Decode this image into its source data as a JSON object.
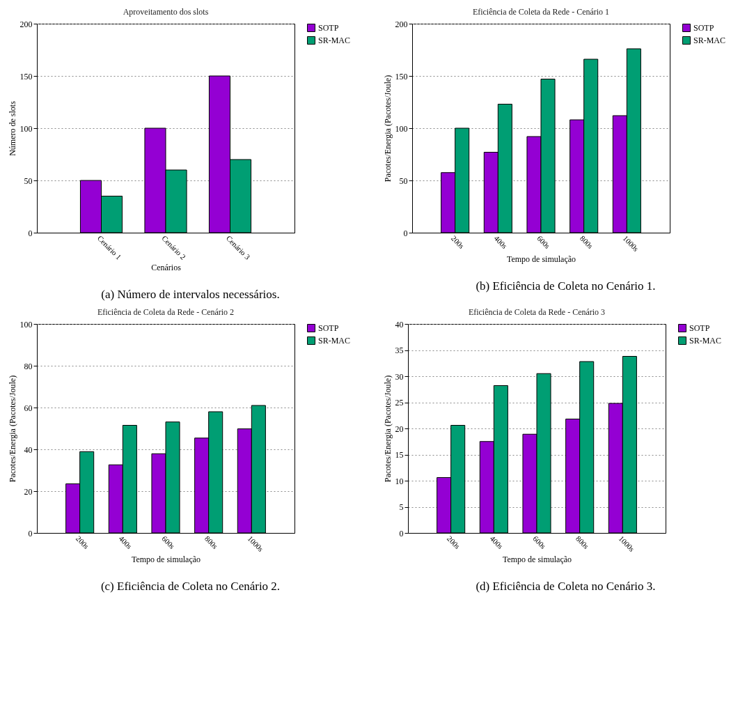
{
  "chart_data": [
    {
      "type": "bar",
      "title": "Aproveitamento dos slots",
      "xlabel": "Cenários",
      "ylabel": "Número de slots",
      "categories": [
        "Cenário 1",
        "Cenário 2",
        "Cenário 3"
      ],
      "series": [
        {
          "name": "SOTP",
          "color": "#9400d3",
          "values": [
            50,
            100,
            150
          ]
        },
        {
          "name": "SR-MAC",
          "color": "#009e73",
          "values": [
            35,
            60,
            70
          ]
        }
      ],
      "ylim": [
        0,
        200
      ],
      "yticks": [
        0,
        50,
        100,
        150,
        200
      ],
      "grid": "y",
      "legend": "top right",
      "annotations": [
        "(a) Número de intervalos necessários."
      ]
    },
    {
      "type": "bar",
      "title": "Eficiência de Coleta da Rede - Cenário 1",
      "xlabel": "Tempo de simulação",
      "ylabel": "Pacotes/Energia (Pacotes/Joule)",
      "categories": [
        "200s",
        "400s",
        "600s",
        "800s",
        "1000s"
      ],
      "series": [
        {
          "name": "SOTP",
          "color": "#9400d3",
          "values": [
            57.5,
            77,
            92,
            108,
            112
          ]
        },
        {
          "name": "SR-MAC",
          "color": "#009e73",
          "values": [
            100,
            123,
            147,
            166,
            176
          ]
        }
      ],
      "ylim": [
        0,
        200
      ],
      "yticks": [
        0,
        50,
        100,
        150,
        200
      ],
      "grid": "y",
      "legend": "top right",
      "annotations": [
        "(b) Eficiência de Coleta no Cenário 1."
      ]
    },
    {
      "type": "bar",
      "title": "Eficiência de Coleta da Rede - Cenário 2",
      "xlabel": "Tempo de simulação",
      "ylabel": "Pacotes/Energia (Pacotes/Joule)",
      "categories": [
        "200s",
        "400s",
        "600s",
        "800s",
        "1000s"
      ],
      "series": [
        {
          "name": "SOTP",
          "color": "#9400d3",
          "values": [
            23.5,
            32.6,
            37.9,
            45.4,
            49.8
          ]
        },
        {
          "name": "SR-MAC",
          "color": "#009e73",
          "values": [
            38.9,
            51.5,
            53.1,
            58,
            61
          ]
        }
      ],
      "ylim": [
        0,
        100
      ],
      "yticks": [
        0,
        20,
        40,
        60,
        80,
        100
      ],
      "grid": "y",
      "legend": "top right",
      "annotations": [
        "(c) Eficiência de Coleta no Cenário 2."
      ]
    },
    {
      "type": "bar",
      "title": "Eficiência de Coleta da Rede - Cenário 3",
      "xlabel": "Tempo de simulação",
      "ylabel": "Pacotes/Energia (Pacotes/Joule)",
      "categories": [
        "200s",
        "400s",
        "600s",
        "800s",
        "1000s"
      ],
      "series": [
        {
          "name": "SOTP",
          "color": "#9400d3",
          "values": [
            10.6,
            17.5,
            18.9,
            21.8,
            24.8
          ]
        },
        {
          "name": "SR-MAC",
          "color": "#009e73",
          "values": [
            20.6,
            28.2,
            30.5,
            32.8,
            33.8
          ]
        }
      ],
      "ylim": [
        0,
        40
      ],
      "yticks": [
        0,
        5,
        10,
        15,
        20,
        25,
        30,
        35,
        40
      ],
      "grid": "y",
      "legend": "top right",
      "annotations": [
        "(d) Eficiência de Coleta no Cenário 3."
      ]
    }
  ]
}
